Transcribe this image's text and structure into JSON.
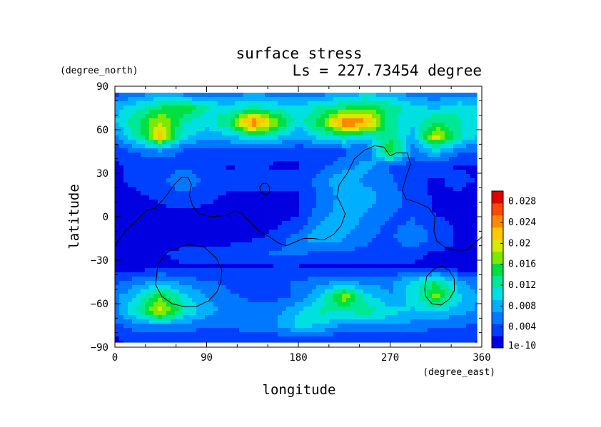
{
  "chart_data": {
    "type": "heatmap",
    "title": "surface stress",
    "subtitle": "Ls = 227.73454 degree",
    "xlabel": "longitude",
    "ylabel": "latitude",
    "x_unit": "(degree_east)",
    "y_unit": "(degree_north)",
    "xlim": [
      0,
      360
    ],
    "ylim": [
      -90,
      90
    ],
    "x_ticks": [
      "0",
      "90",
      "180",
      "270",
      "360"
    ],
    "y_ticks": [
      "90",
      "60",
      "30",
      "0",
      "−30",
      "−60",
      "−90"
    ],
    "colorbar": {
      "tick_labels": [
        "1e-10",
        "0.004",
        "0.008",
        "0.012",
        "0.016",
        "0.02",
        "0.024",
        "0.028"
      ],
      "range": [
        0,
        0.03
      ],
      "colors": [
        "#0000e0",
        "#0040ff",
        "#0078ff",
        "#00b0ff",
        "#00e0e0",
        "#00e896",
        "#00e040",
        "#7de800",
        "#d8e800",
        "#ffc800",
        "#ff8a00",
        "#ff4800",
        "#e00000"
      ]
    },
    "grid": {
      "longitudes": [
        0,
        22.5,
        45,
        67.5,
        90,
        112.5,
        135,
        157.5,
        180,
        202.5,
        225,
        247.5,
        270,
        292.5,
        315,
        337.5,
        360
      ],
      "latitudes": [
        85,
        75,
        65,
        55,
        45,
        35,
        25,
        15,
        5,
        -5,
        -15,
        -25,
        -35,
        -45,
        -55,
        -65,
        -75,
        -85
      ],
      "values": [
        [
          0.004,
          0.006,
          0.007,
          0.006,
          0.005,
          0.006,
          0.007,
          0.006,
          0.005,
          0.006,
          0.008,
          0.009,
          0.008,
          0.006,
          0.005,
          0.006,
          0.005
        ],
        [
          0.008,
          0.011,
          0.014,
          0.016,
          0.012,
          0.01,
          0.012,
          0.011,
          0.01,
          0.012,
          0.014,
          0.016,
          0.013,
          0.01,
          0.009,
          0.011,
          0.01
        ],
        [
          0.009,
          0.014,
          0.019,
          0.012,
          0.01,
          0.014,
          0.026,
          0.018,
          0.01,
          0.016,
          0.026,
          0.024,
          0.012,
          0.01,
          0.014,
          0.012,
          0.01
        ],
        [
          0.006,
          0.012,
          0.022,
          0.01,
          0.008,
          0.008,
          0.012,
          0.01,
          0.007,
          0.01,
          0.012,
          0.01,
          0.014,
          0.008,
          0.02,
          0.012,
          0.008
        ],
        [
          0.003,
          0.005,
          0.006,
          0.004,
          0.003,
          0.004,
          0.004,
          0.003,
          0.003,
          0.003,
          0.004,
          0.005,
          0.016,
          0.006,
          0.009,
          0.005,
          0.004
        ],
        [
          0.002,
          0.003,
          0.003,
          0.004,
          0.003,
          0.002,
          0.003,
          0.002,
          0.002,
          0.004,
          0.006,
          0.008,
          0.004,
          0.003,
          0.003,
          0.002,
          0.002
        ],
        [
          0.002,
          0.003,
          0.004,
          0.007,
          0.004,
          0.003,
          0.003,
          0.003,
          0.003,
          0.006,
          0.009,
          0.006,
          0.005,
          0.003,
          0.002,
          0.003,
          0.002
        ],
        [
          0.001,
          0.002,
          0.003,
          0.004,
          0.003,
          0.002,
          0.002,
          0.002,
          0.002,
          0.005,
          0.008,
          0.008,
          0.006,
          0.003,
          0.002,
          0.002,
          0.001
        ],
        [
          0.001,
          0.001,
          0.002,
          0.002,
          0.002,
          0.001,
          0.001,
          0.001,
          0.002,
          0.006,
          0.008,
          0.007,
          0.005,
          0.004,
          0.002,
          0.001,
          0.001
        ],
        [
          0.001,
          0.001,
          0.001,
          0.002,
          0.002,
          0.001,
          0.001,
          0.002,
          0.003,
          0.007,
          0.008,
          0.006,
          0.004,
          0.005,
          0.003,
          0.002,
          0.001
        ],
        [
          0.001,
          0.001,
          0.001,
          0.001,
          0.001,
          0.001,
          0.002,
          0.003,
          0.006,
          0.009,
          0.007,
          0.005,
          0.004,
          0.007,
          0.004,
          0.002,
          0.001
        ],
        [
          0.002,
          0.002,
          0.002,
          0.003,
          0.003,
          0.004,
          0.004,
          0.005,
          0.005,
          0.004,
          0.004,
          0.004,
          0.004,
          0.003,
          0.002,
          0.002,
          0.002
        ],
        [
          0.001,
          0.001,
          0.002,
          0.002,
          0.002,
          0.002,
          0.002,
          0.002,
          0.002,
          0.002,
          0.002,
          0.002,
          0.002,
          0.002,
          0.001,
          0.001,
          0.001
        ],
        [
          0.004,
          0.006,
          0.008,
          0.006,
          0.005,
          0.004,
          0.004,
          0.004,
          0.005,
          0.006,
          0.007,
          0.006,
          0.006,
          0.01,
          0.014,
          0.008,
          0.005
        ],
        [
          0.006,
          0.01,
          0.016,
          0.01,
          0.007,
          0.005,
          0.004,
          0.004,
          0.005,
          0.01,
          0.018,
          0.01,
          0.007,
          0.01,
          0.017,
          0.01,
          0.006
        ],
        [
          0.006,
          0.012,
          0.02,
          0.012,
          0.008,
          0.006,
          0.006,
          0.006,
          0.009,
          0.012,
          0.012,
          0.013,
          0.01,
          0.009,
          0.009,
          0.008,
          0.006
        ],
        [
          0.004,
          0.006,
          0.007,
          0.006,
          0.005,
          0.005,
          0.006,
          0.007,
          0.01,
          0.009,
          0.006,
          0.007,
          0.007,
          0.006,
          0.005,
          0.005,
          0.004
        ],
        [
          0.002,
          0.003,
          0.003,
          0.003,
          0.003,
          0.003,
          0.003,
          0.003,
          0.003,
          0.003,
          0.003,
          0.003,
          0.003,
          0.003,
          0.003,
          0.003,
          0.002
        ]
      ]
    },
    "contours": [
      [
        [
          0,
          -20
        ],
        [
          10,
          -10
        ],
        [
          22,
          -2
        ],
        [
          30,
          4
        ],
        [
          40,
          6
        ],
        [
          50,
          14
        ],
        [
          58,
          22
        ],
        [
          65,
          27
        ],
        [
          72,
          27
        ],
        [
          75,
          22
        ],
        [
          73,
          15
        ],
        [
          76,
          8
        ],
        [
          82,
          2
        ],
        [
          95,
          0
        ],
        [
          110,
          1
        ],
        [
          118,
          4
        ],
        [
          125,
          2
        ],
        [
          133,
          -4
        ],
        [
          142,
          -10
        ],
        [
          152,
          -14
        ],
        [
          160,
          -18
        ],
        [
          168,
          -20
        ],
        [
          175,
          -18
        ],
        [
          185,
          -15
        ],
        [
          195,
          -15
        ],
        [
          205,
          -16
        ],
        [
          215,
          -12
        ],
        [
          222,
          -6
        ],
        [
          226,
          2
        ],
        [
          222,
          8
        ],
        [
          218,
          14
        ],
        [
          220,
          22
        ],
        [
          228,
          30
        ],
        [
          235,
          40
        ],
        [
          245,
          46
        ],
        [
          255,
          49
        ],
        [
          264,
          48
        ],
        [
          270,
          42
        ],
        [
          276,
          44
        ],
        [
          287,
          44
        ],
        [
          290,
          36
        ],
        [
          286,
          28
        ],
        [
          282,
          18
        ],
        [
          286,
          12
        ],
        [
          296,
          10
        ],
        [
          308,
          6
        ],
        [
          314,
          0
        ],
        [
          313,
          -10
        ],
        [
          316,
          -17
        ],
        [
          324,
          -21
        ],
        [
          333,
          -23
        ],
        [
          345,
          -23
        ],
        [
          360,
          -14
        ]
      ],
      [
        [
          142,
          20
        ],
        [
          145,
          23
        ],
        [
          149,
          23
        ],
        [
          152,
          20
        ],
        [
          151,
          16
        ],
        [
          147,
          15
        ],
        [
          143,
          17
        ],
        [
          142,
          20
        ]
      ],
      [
        [
          40,
          -47
        ],
        [
          42,
          -33
        ],
        [
          52,
          -24
        ],
        [
          72,
          -19
        ],
        [
          88,
          -21
        ],
        [
          100,
          -29
        ],
        [
          105,
          -37
        ],
        [
          104,
          -45
        ],
        [
          100,
          -52
        ],
        [
          92,
          -58
        ],
        [
          80,
          -62
        ],
        [
          68,
          -62
        ],
        [
          56,
          -60
        ],
        [
          46,
          -55
        ],
        [
          40,
          -47
        ]
      ],
      [
        [
          304,
          -50
        ],
        [
          306,
          -41
        ],
        [
          313,
          -36
        ],
        [
          321,
          -34
        ],
        [
          328,
          -37
        ],
        [
          333,
          -43
        ],
        [
          333,
          -51
        ],
        [
          328,
          -57
        ],
        [
          320,
          -61
        ],
        [
          311,
          -60
        ],
        [
          305,
          -55
        ],
        [
          304,
          -50
        ]
      ]
    ]
  }
}
